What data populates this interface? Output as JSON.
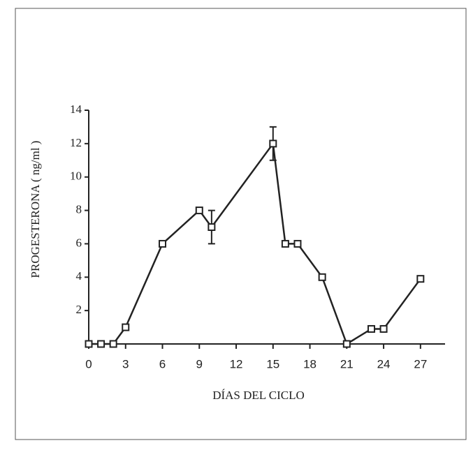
{
  "chart_data": {
    "type": "line",
    "x_label": "DÍAS DEL CICLO",
    "y_label": "PROGESTERONA  ( ng/ml )",
    "x": [
      0,
      1,
      2,
      3,
      6,
      9,
      10,
      15,
      16,
      17,
      19,
      21,
      23,
      24,
      27
    ],
    "series": [
      {
        "color": "#222222",
        "values": [
          0,
          0,
          0,
          1,
          6,
          8,
          7,
          12,
          6,
          6,
          4,
          0,
          0.9,
          0.9,
          3.9
        ],
        "errors": [
          null,
          null,
          null,
          null,
          null,
          null,
          1,
          1,
          null,
          null,
          null,
          null,
          null,
          null,
          null
        ]
      }
    ],
    "xlim": [
      0,
      29
    ],
    "xticks": [
      0,
      3,
      6,
      9,
      12,
      15,
      18,
      21,
      24,
      27
    ],
    "ylim": [
      0,
      14
    ],
    "yticks": [
      2,
      4,
      6,
      8,
      10,
      12,
      14
    ]
  }
}
